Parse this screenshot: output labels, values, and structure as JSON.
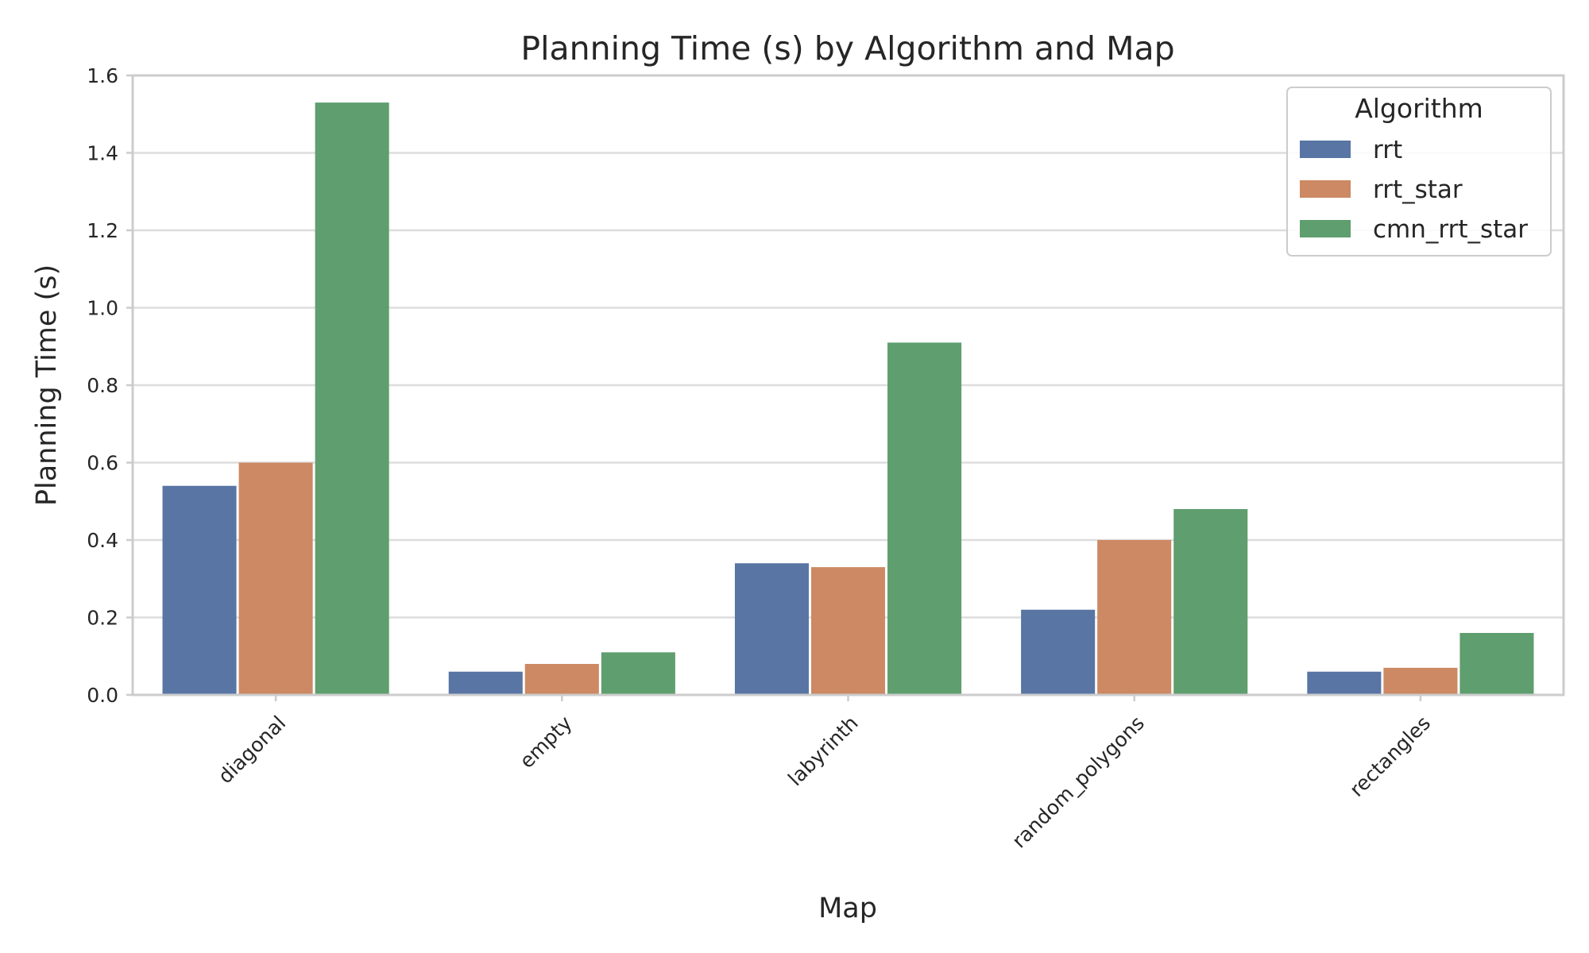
{
  "chart_data": {
    "type": "bar",
    "title": "Planning Time (s) by Algorithm and Map",
    "xlabel": "Map",
    "ylabel": "Planning Time (s)",
    "categories": [
      "diagonal",
      "empty",
      "labyrinth",
      "random_polygons",
      "rectangles"
    ],
    "series": [
      {
        "name": "rrt",
        "color": "#5875a4",
        "values": [
          0.54,
          0.06,
          0.34,
          0.22,
          0.06
        ]
      },
      {
        "name": "rrt_star",
        "color": "#cc8963",
        "values": [
          0.6,
          0.08,
          0.33,
          0.4,
          0.07
        ]
      },
      {
        "name": "cmn_rrt_star",
        "color": "#5f9e6e",
        "values": [
          1.53,
          0.11,
          0.91,
          0.48,
          0.16
        ]
      }
    ],
    "ylim": [
      0,
      1.6
    ],
    "yticks": [
      "0.0",
      "0.2",
      "0.4",
      "0.6",
      "0.8",
      "1.0",
      "1.2",
      "1.4",
      "1.6"
    ],
    "grid": true,
    "legend": {
      "title": "Algorithm",
      "position": "top-right"
    }
  }
}
